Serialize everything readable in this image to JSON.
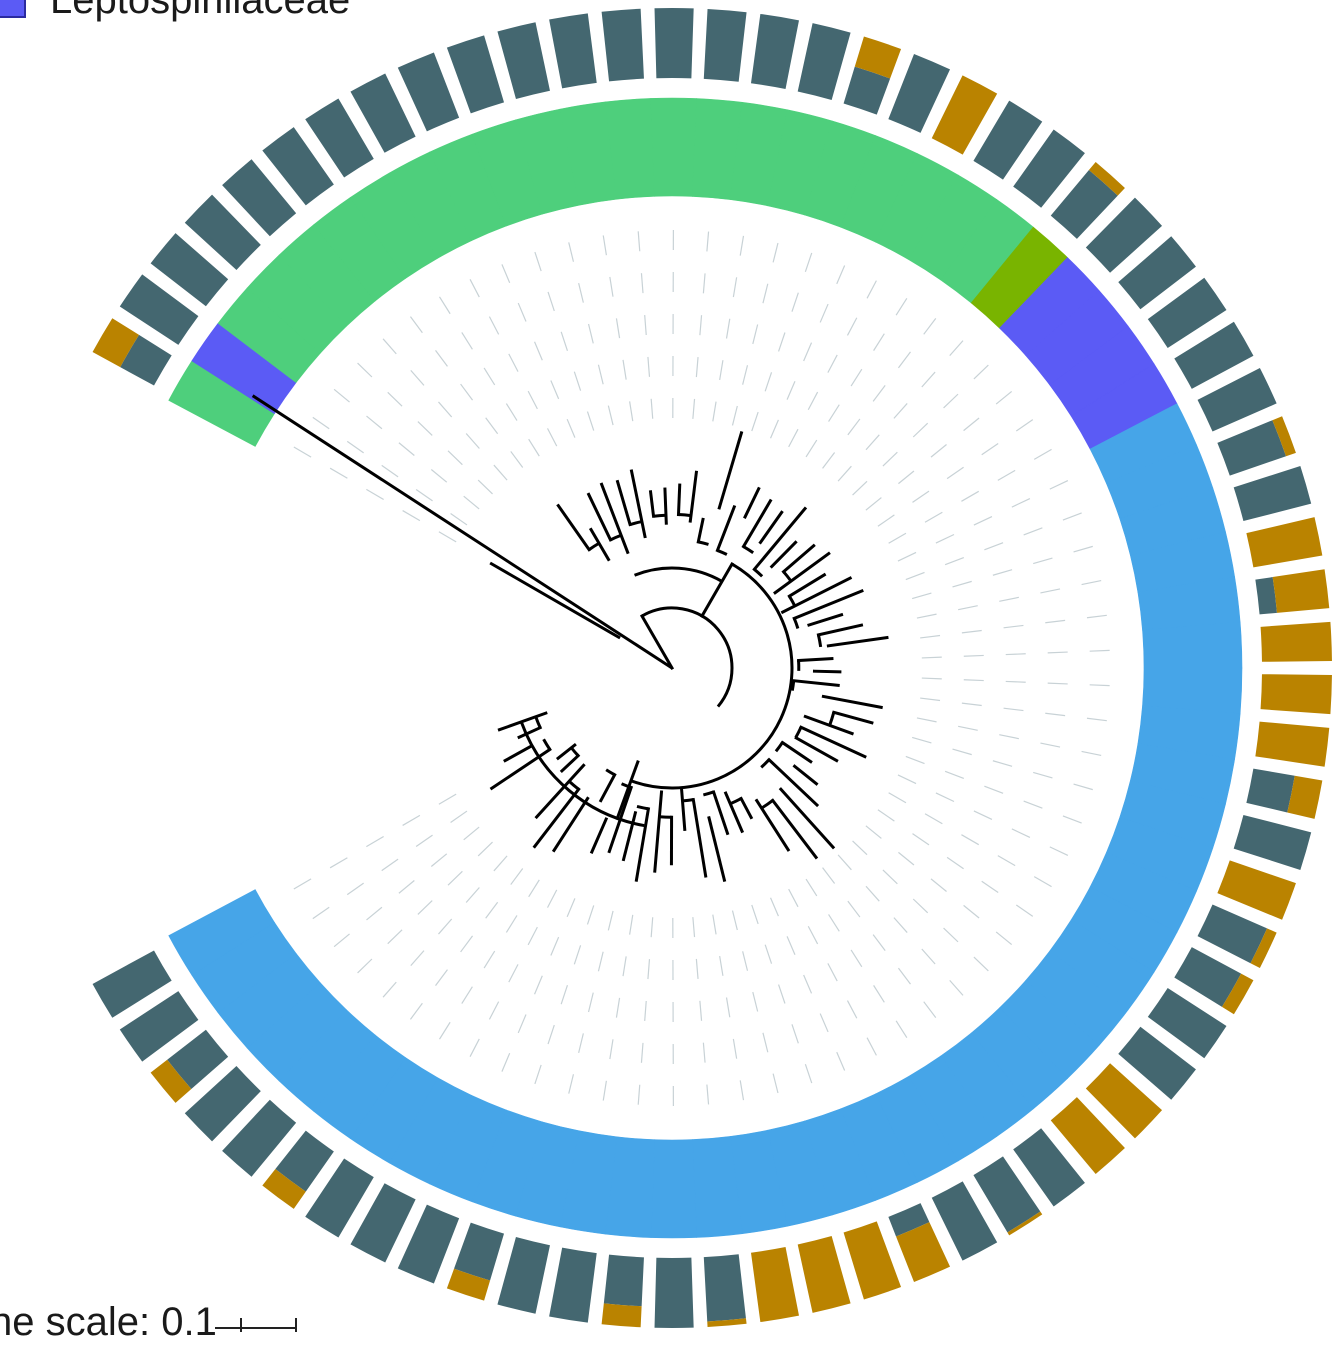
{
  "legend": {
    "label": "Leptospirillaceae",
    "color": "#5b5bf5"
  },
  "scale": {
    "label": "ne scale: 0.1"
  },
  "colors": {
    "ring_green": "#4ecf7c",
    "ring_blue": "#46a5e8",
    "ring_purple": "#5b5bf5",
    "ring_olive": "#79b400",
    "bar_dark": "#446770",
    "bar_gold": "#ba8300",
    "tree": "#000000",
    "guide": "#c8d2d6"
  },
  "ring_segments": [
    {
      "group": "green"
    },
    {
      "group": "purple"
    },
    {
      "group": "green"
    },
    {
      "group": "green"
    },
    {
      "group": "green"
    },
    {
      "group": "green"
    },
    {
      "group": "green"
    },
    {
      "group": "green"
    },
    {
      "group": "green"
    },
    {
      "group": "green"
    },
    {
      "group": "green"
    },
    {
      "group": "green"
    },
    {
      "group": "green"
    },
    {
      "group": "green"
    },
    {
      "group": "green"
    },
    {
      "group": "green"
    },
    {
      "group": "green"
    },
    {
      "group": "green"
    },
    {
      "group": "green"
    },
    {
      "group": "green"
    },
    {
      "group": "green"
    },
    {
      "group": "green"
    },
    {
      "group": "olive"
    },
    {
      "group": "purple"
    },
    {
      "group": "purple"
    },
    {
      "group": "purple"
    },
    {
      "group": "purple"
    },
    {
      "group": "blue"
    },
    {
      "group": "blue"
    },
    {
      "group": "blue"
    },
    {
      "group": "blue"
    },
    {
      "group": "blue"
    },
    {
      "group": "blue"
    },
    {
      "group": "blue"
    },
    {
      "group": "blue"
    },
    {
      "group": "blue"
    },
    {
      "group": "blue"
    },
    {
      "group": "blue"
    },
    {
      "group": "blue"
    },
    {
      "group": "blue"
    },
    {
      "group": "blue"
    },
    {
      "group": "blue"
    },
    {
      "group": "blue"
    },
    {
      "group": "blue"
    },
    {
      "group": "blue"
    },
    {
      "group": "blue"
    },
    {
      "group": "blue"
    },
    {
      "group": "blue"
    },
    {
      "group": "blue"
    },
    {
      "group": "blue"
    },
    {
      "group": "blue"
    },
    {
      "group": "blue"
    },
    {
      "group": "blue"
    },
    {
      "group": "blue"
    },
    {
      "group": "blue"
    },
    {
      "group": "blue"
    },
    {
      "group": "blue"
    },
    {
      "group": "blue"
    },
    {
      "group": "blue"
    },
    {
      "group": "blue"
    },
    {
      "group": "blue"
    },
    {
      "group": "blue"
    },
    {
      "group": "blue"
    },
    {
      "group": "blue"
    },
    {
      "group": "blue"
    },
    {
      "group": "blue"
    }
  ],
  "bars": [
    {
      "dark": 0.55,
      "gold": 0.45
    },
    {
      "dark": 1.0,
      "gold": 0.0
    },
    {
      "dark": 1.0,
      "gold": 0.0
    },
    {
      "dark": 1.0,
      "gold": 0.0
    },
    {
      "dark": 1.0,
      "gold": 0.0
    },
    {
      "dark": 1.0,
      "gold": 0.0
    },
    {
      "dark": 1.0,
      "gold": 0.0
    },
    {
      "dark": 1.0,
      "gold": 0.0
    },
    {
      "dark": 1.0,
      "gold": 0.0
    },
    {
      "dark": 1.0,
      "gold": 0.0
    },
    {
      "dark": 1.0,
      "gold": 0.0
    },
    {
      "dark": 1.0,
      "gold": 0.0
    },
    {
      "dark": 1.0,
      "gold": 0.0
    },
    {
      "dark": 1.0,
      "gold": 0.0
    },
    {
      "dark": 1.0,
      "gold": 0.0
    },
    {
      "dark": 1.0,
      "gold": 0.0
    },
    {
      "dark": 1.0,
      "gold": 0.0
    },
    {
      "dark": 0.55,
      "gold": 0.45
    },
    {
      "dark": 1.0,
      "gold": 0.0
    },
    {
      "dark": 0.0,
      "gold": 1.0
    },
    {
      "dark": 1.0,
      "gold": 0.0
    },
    {
      "dark": 1.0,
      "gold": 0.0
    },
    {
      "dark": 0.85,
      "gold": 0.15
    },
    {
      "dark": 1.0,
      "gold": 0.0
    },
    {
      "dark": 1.0,
      "gold": 0.0
    },
    {
      "dark": 1.0,
      "gold": 0.0
    },
    {
      "dark": 1.0,
      "gold": 0.0
    },
    {
      "dark": 1.0,
      "gold": 0.0
    },
    {
      "dark": 0.85,
      "gold": 0.15
    },
    {
      "dark": 1.0,
      "gold": 0.0
    },
    {
      "dark": 0.0,
      "gold": 1.0
    },
    {
      "dark": 0.25,
      "gold": 0.75
    },
    {
      "dark": 0.0,
      "gold": 1.0
    },
    {
      "dark": 0.0,
      "gold": 1.0
    },
    {
      "dark": 0.0,
      "gold": 1.0
    },
    {
      "dark": 0.6,
      "gold": 0.4
    },
    {
      "dark": 1.0,
      "gold": 0.0
    },
    {
      "dark": 0.0,
      "gold": 1.0
    },
    {
      "dark": 0.85,
      "gold": 0.15
    },
    {
      "dark": 0.8,
      "gold": 0.2
    },
    {
      "dark": 1.0,
      "gold": 0.0
    },
    {
      "dark": 1.0,
      "gold": 0.0
    },
    {
      "dark": 0.0,
      "gold": 1.0
    },
    {
      "dark": 0.0,
      "gold": 1.0
    },
    {
      "dark": 1.0,
      "gold": 0.0
    },
    {
      "dark": 0.95,
      "gold": 0.05
    },
    {
      "dark": 1.0,
      "gold": 0.0
    },
    {
      "dark": 0.3,
      "gold": 0.7
    },
    {
      "dark": 0.0,
      "gold": 1.0
    },
    {
      "dark": 0.0,
      "gold": 1.0
    },
    {
      "dark": 0.0,
      "gold": 1.0
    },
    {
      "dark": 0.92,
      "gold": 0.08
    },
    {
      "dark": 1.0,
      "gold": 0.0
    },
    {
      "dark": 0.7,
      "gold": 0.3
    },
    {
      "dark": 1.0,
      "gold": 0.0
    },
    {
      "dark": 1.0,
      "gold": 0.0
    },
    {
      "dark": 0.7,
      "gold": 0.3
    },
    {
      "dark": 1.0,
      "gold": 0.0
    },
    {
      "dark": 1.0,
      "gold": 0.0
    },
    {
      "dark": 1.0,
      "gold": 0.0
    },
    {
      "dark": 0.7,
      "gold": 0.3
    },
    {
      "dark": 1.0,
      "gold": 0.0
    },
    {
      "dark": 1.0,
      "gold": 0.0
    },
    {
      "dark": 0.7,
      "gold": 0.3
    },
    {
      "dark": 1.0,
      "gold": 0.0
    },
    {
      "dark": 1.0,
      "gold": 0.0
    }
  ]
}
